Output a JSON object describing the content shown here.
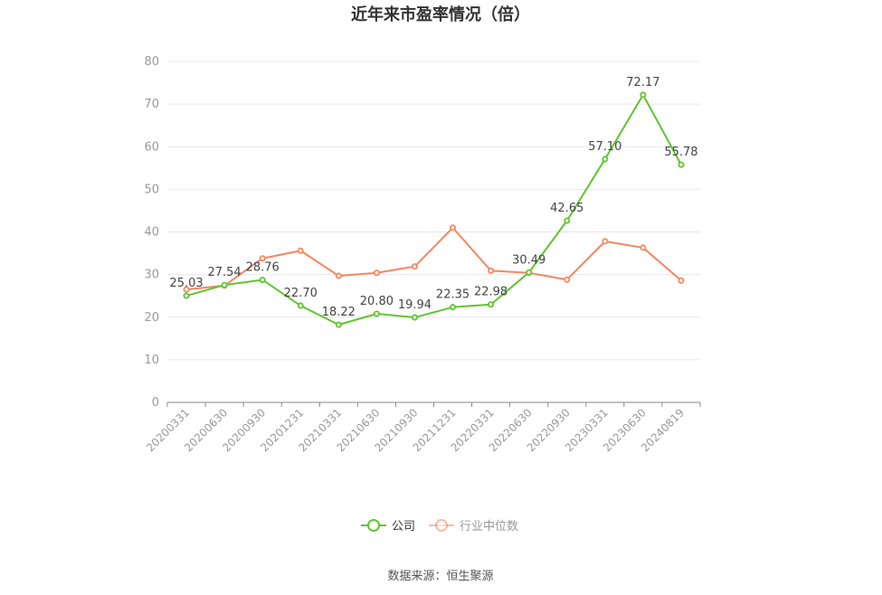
{
  "chart_data": {
    "type": "line",
    "title": "近年来市盈率情况（倍）",
    "categories": [
      "20200331",
      "20200630",
      "20200930",
      "20201231",
      "20210331",
      "20210630",
      "20210930",
      "20211231",
      "20220331",
      "20220630",
      "20220930",
      "20230331",
      "20230630",
      "20240819"
    ],
    "series": [
      {
        "name": "公司",
        "color": "#5fc52e",
        "values": [
          25.03,
          27.54,
          28.76,
          22.7,
          18.22,
          20.8,
          19.94,
          22.35,
          22.98,
          30.49,
          42.65,
          57.1,
          72.17,
          55.78
        ],
        "labels": [
          "25.03",
          "27.54",
          "28.76",
          "22.70",
          "18.22",
          "20.80",
          "19.94",
          "22.35",
          "22.98",
          "30.49",
          "42.65",
          "57.10",
          "72.17",
          "55.78"
        ]
      },
      {
        "name": "行业中位数",
        "color": "#f5875e",
        "values": [
          26.5,
          27.4,
          33.8,
          35.6,
          29.7,
          30.4,
          31.9,
          41.0,
          30.9,
          30.4,
          28.8,
          37.8,
          36.3,
          28.6
        ]
      }
    ],
    "ylim": [
      0,
      80
    ],
    "yticks": [
      "0",
      "10",
      "20",
      "30",
      "40",
      "50",
      "60",
      "70",
      "80"
    ],
    "grid": true,
    "legend_position": "bottom"
  },
  "source": "数据来源：恒生聚源"
}
